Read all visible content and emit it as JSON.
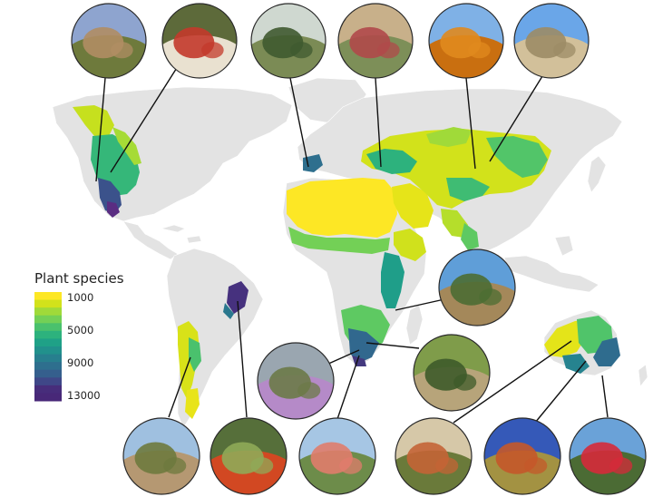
{
  "legend": {
    "title": "Plant species",
    "ticks": [
      "1000",
      "5000",
      "9000",
      "13000"
    ],
    "tick_values": [
      1000,
      5000,
      9000,
      13000
    ],
    "range": [
      1000,
      13000
    ],
    "colors": [
      "#fde725",
      "#d2e21b",
      "#a0da39",
      "#73d056",
      "#4ac16d",
      "#2db27d",
      "#1fa187",
      "#21918c",
      "#277f8e",
      "#2e6f8e",
      "#355f8d",
      "#3f4788",
      "#472d7b",
      "#482878"
    ]
  },
  "map": {
    "land_color": "#e3e3e3",
    "border_color": "#ffffff",
    "highlighted_regions": [
      {
        "name": "north-american-deserts",
        "level": 7500
      },
      {
        "name": "mexican-highlands",
        "level": 12500
      },
      {
        "name": "mediterranean-saharan-arabian-central-asian-drylands",
        "level": 2500
      },
      {
        "name": "east-african-drylands",
        "level": 5500
      },
      {
        "name": "southern-african-drylands",
        "level": 9000
      },
      {
        "name": "brazilian-caatinga",
        "level": 11000
      },
      {
        "name": "south-american-dry-diagonal",
        "level": 3500
      },
      {
        "name": "australian-drylands",
        "level": 5500
      }
    ]
  },
  "photos": [
    {
      "name": "desert-mountain-cactus-photo",
      "colors": [
        "#8ea4cf",
        "#b08d63",
        "#6e7a3c"
      ]
    },
    {
      "name": "red-flowering-cactus-photo",
      "colors": [
        "#5d6a3a",
        "#c33a2b",
        "#e9e1d0"
      ]
    },
    {
      "name": "oak-savanna-tree-photo",
      "colors": [
        "#cfd8d0",
        "#3f5a30",
        "#7b8b55"
      ]
    },
    {
      "name": "red-succulent-pods-photo",
      "colors": [
        "#c8b08a",
        "#b0494a",
        "#7d8f58"
      ]
    },
    {
      "name": "autumn-poplar-water-photo",
      "colors": [
        "#7fb1e6",
        "#e08a1e",
        "#c96f10"
      ]
    },
    {
      "name": "saxaul-shrub-photo",
      "colors": [
        "#6aa6e8",
        "#9c8c66",
        "#d2c09a"
      ]
    },
    {
      "name": "acacia-woodland-photo",
      "colors": [
        "#5f9ed8",
        "#4c6d33",
        "#a4885a"
      ]
    },
    {
      "name": "mopane-woodland-photo",
      "colors": [
        "#7f9c4a",
        "#3e5b2a",
        "#b7a47a"
      ]
    },
    {
      "name": "succulent-karoo-flowers-photo",
      "colors": [
        "#9aa6b0",
        "#6c7a48",
        "#b58ac8"
      ]
    },
    {
      "name": "caatinga-tree-photo",
      "colors": [
        "#9fc0e0",
        "#6e7a3e",
        "#b59872"
      ]
    },
    {
      "name": "flowering-cactus-stems-photo",
      "colors": [
        "#566f3a",
        "#8faa58",
        "#d24822"
      ]
    },
    {
      "name": "protea-flowers-photo",
      "colors": [
        "#a6c6e4",
        "#e07c6c",
        "#6d8c4a"
      ]
    },
    {
      "name": "spinifex-red-sand-photo",
      "colors": [
        "#d6c8a8",
        "#c46436",
        "#6a7a3a"
      ]
    },
    {
      "name": "uluru-photo",
      "colors": [
        "#3559b8",
        "#c4582a",
        "#a39242"
      ]
    },
    {
      "name": "red-eucalyptus-flowers-photo",
      "colors": [
        "#6aa2d8",
        "#d62a3a",
        "#4b6b34"
      ]
    }
  ]
}
